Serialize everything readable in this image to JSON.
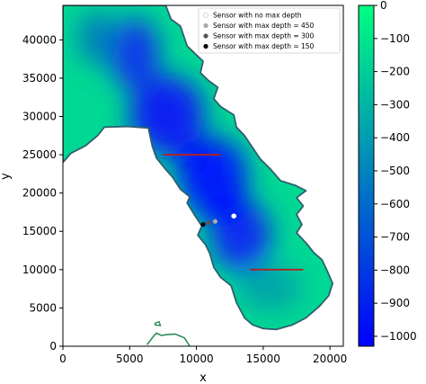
{
  "chart_data": {
    "type": "heatmap",
    "title": "",
    "xlabel": "x",
    "ylabel": "y",
    "xlim": [
      0,
      21000
    ],
    "ylim": [
      0,
      44500
    ],
    "x_ticks": [
      0,
      5000,
      10000,
      15000,
      20000
    ],
    "y_ticks": [
      0,
      5000,
      10000,
      15000,
      20000,
      25000,
      30000,
      35000,
      40000
    ],
    "grid": false,
    "legend_position": "top-right",
    "colormap": "winter",
    "colormap_colors": [
      "#0000ff",
      "#00ff80"
    ],
    "colorbar_ticks": [
      0,
      -100,
      -200,
      -300,
      -400,
      -500,
      -600,
      -700,
      -800,
      -900,
      -1000
    ],
    "colorbar_range": [
      -1030,
      0
    ],
    "outline_color": "#2f5f6f",
    "transect_color": "#b22222",
    "transects": [
      {
        "x": [
          7500,
          11800
        ],
        "y": [
          25000,
          25000
        ]
      },
      {
        "x": [
          14000,
          18000
        ],
        "y": [
          10000,
          10000
        ]
      }
    ],
    "legend": [
      {
        "label": "Sensor with no max depth",
        "color": "#ffffff"
      },
      {
        "label": "Sensor with max depth = 450",
        "color": "#a9a9a9"
      },
      {
        "label": "Sensor with max depth = 300",
        "color": "#555555"
      },
      {
        "label": "Sensor with max depth = 150",
        "color": "#000000"
      }
    ],
    "sensors": [
      {
        "kind": "no max depth",
        "x": 12800,
        "y": 17000,
        "color": "#ffffff"
      },
      {
        "kind": "max depth = 450",
        "x": 11400,
        "y": 16300,
        "color": "#a9a9a9"
      },
      {
        "kind": "max depth = 300",
        "x": 10900,
        "y": 16100,
        "color": "#555555"
      },
      {
        "kind": "max depth = 150",
        "x": 10500,
        "y": 15900,
        "color": "#000000"
      }
    ],
    "region_outline": [
      [
        7700,
        44500
      ],
      [
        8100,
        42700
      ],
      [
        8800,
        41800
      ],
      [
        9300,
        39200
      ],
      [
        9900,
        38200
      ],
      [
        10500,
        37200
      ],
      [
        10300,
        35700
      ],
      [
        10900,
        34700
      ],
      [
        11600,
        33800
      ],
      [
        11300,
        32300
      ],
      [
        11800,
        31300
      ],
      [
        12800,
        30200
      ],
      [
        13000,
        28600
      ],
      [
        13600,
        27500
      ],
      [
        14100,
        26200
      ],
      [
        14800,
        24400
      ],
      [
        15500,
        23200
      ],
      [
        16300,
        21600
      ],
      [
        17400,
        21000
      ],
      [
        18200,
        20300
      ],
      [
        17500,
        19400
      ],
      [
        18000,
        18300
      ],
      [
        17500,
        17200
      ],
      [
        17900,
        15900
      ],
      [
        17500,
        14800
      ],
      [
        18200,
        13500
      ],
      [
        18800,
        12200
      ],
      [
        19400,
        11300
      ],
      [
        19800,
        9800
      ],
      [
        20200,
        8200
      ],
      [
        19900,
        6600
      ],
      [
        19200,
        5200
      ],
      [
        18200,
        3700
      ],
      [
        17200,
        2800
      ],
      [
        16000,
        2200
      ],
      [
        15000,
        2300
      ],
      [
        14200,
        2800
      ],
      [
        13600,
        3700
      ],
      [
        13000,
        5700
      ],
      [
        12600,
        7900
      ],
      [
        11800,
        9000
      ],
      [
        11300,
        10300
      ],
      [
        11000,
        12100
      ],
      [
        10700,
        13200
      ],
      [
        10100,
        14500
      ],
      [
        10400,
        15700
      ],
      [
        9800,
        17300
      ],
      [
        9300,
        18700
      ],
      [
        9500,
        19500
      ],
      [
        8800,
        20500
      ],
      [
        8200,
        22100
      ],
      [
        7600,
        23300
      ],
      [
        7000,
        24600
      ],
      [
        6700,
        26100
      ],
      [
        6400,
        28500
      ],
      [
        4800,
        28700
      ],
      [
        3100,
        28600
      ],
      [
        2600,
        27500
      ],
      [
        1700,
        26200
      ],
      [
        600,
        25200
      ],
      [
        0,
        24000
      ],
      [
        0,
        44500
      ]
    ],
    "coast_fragment": [
      [
        6300,
        200
      ],
      [
        6700,
        1100
      ],
      [
        7000,
        1700
      ],
      [
        7400,
        1400
      ],
      [
        7700,
        1500
      ],
      [
        8400,
        1600
      ],
      [
        9100,
        1100
      ],
      [
        9500,
        0
      ]
    ],
    "islet": [
      [
        6900,
        3000
      ],
      [
        7200,
        3200
      ],
      [
        7300,
        2700
      ],
      [
        6900,
        2800
      ]
    ]
  }
}
